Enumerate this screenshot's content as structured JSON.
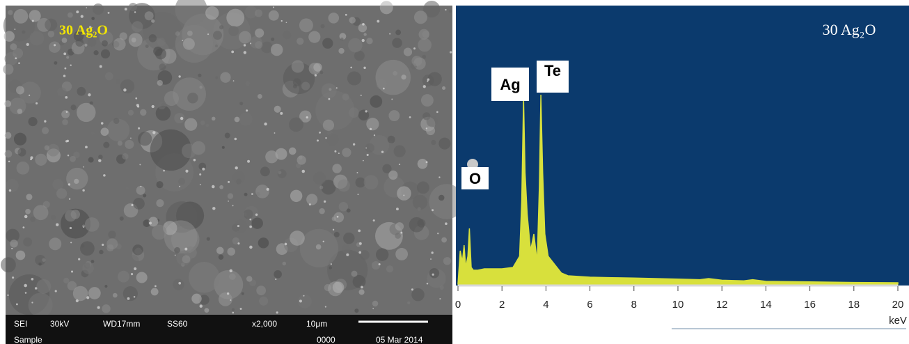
{
  "sem_image": {
    "label": "30 Ag₂O",
    "info": [
      "SEI",
      "30kV",
      "WD17mm",
      "SS60",
      "x2,000",
      "10μm"
    ],
    "footer": [
      "Sample",
      "0000",
      "05 Mar 2014"
    ]
  },
  "chart_data": {
    "type": "area",
    "title": "30 Ag₂O",
    "xlabel": "keV",
    "annotations": [
      "O",
      "Ag",
      "Te"
    ],
    "x": [
      0,
      0.1,
      0.2,
      0.28,
      0.35,
      0.45,
      0.52,
      0.6,
      0.7,
      0.9,
      1.2,
      1.5,
      2.0,
      2.5,
      2.8,
      2.9,
      2.98,
      3.05,
      3.15,
      3.3,
      3.45,
      3.6,
      3.7,
      3.77,
      3.85,
      3.95,
      4.1,
      4.3,
      4.5,
      4.7,
      5.0,
      6,
      7,
      8,
      9,
      10,
      11,
      11.4,
      12,
      13,
      13.4,
      14,
      16,
      18,
      20
    ],
    "values": [
      0,
      12,
      8,
      14,
      6,
      10,
      20,
      6,
      5,
      5,
      5.5,
      5.5,
      5.5,
      6,
      10,
      30,
      67,
      40,
      25,
      12,
      18,
      8,
      35,
      68,
      40,
      18,
      10,
      8,
      6,
      4,
      3,
      2.5,
      2.3,
      2.2,
      2,
      1.8,
      1.6,
      2,
      1.4,
      1.2,
      1.6,
      1,
      0.8,
      0.6,
      0.5
    ],
    "color": "#d8e03c",
    "xlim": [
      0,
      20
    ],
    "xticks": [
      0,
      2,
      4,
      6,
      8,
      10,
      12,
      14,
      16,
      18,
      20
    ],
    "ylim": [
      0,
      100
    ]
  }
}
